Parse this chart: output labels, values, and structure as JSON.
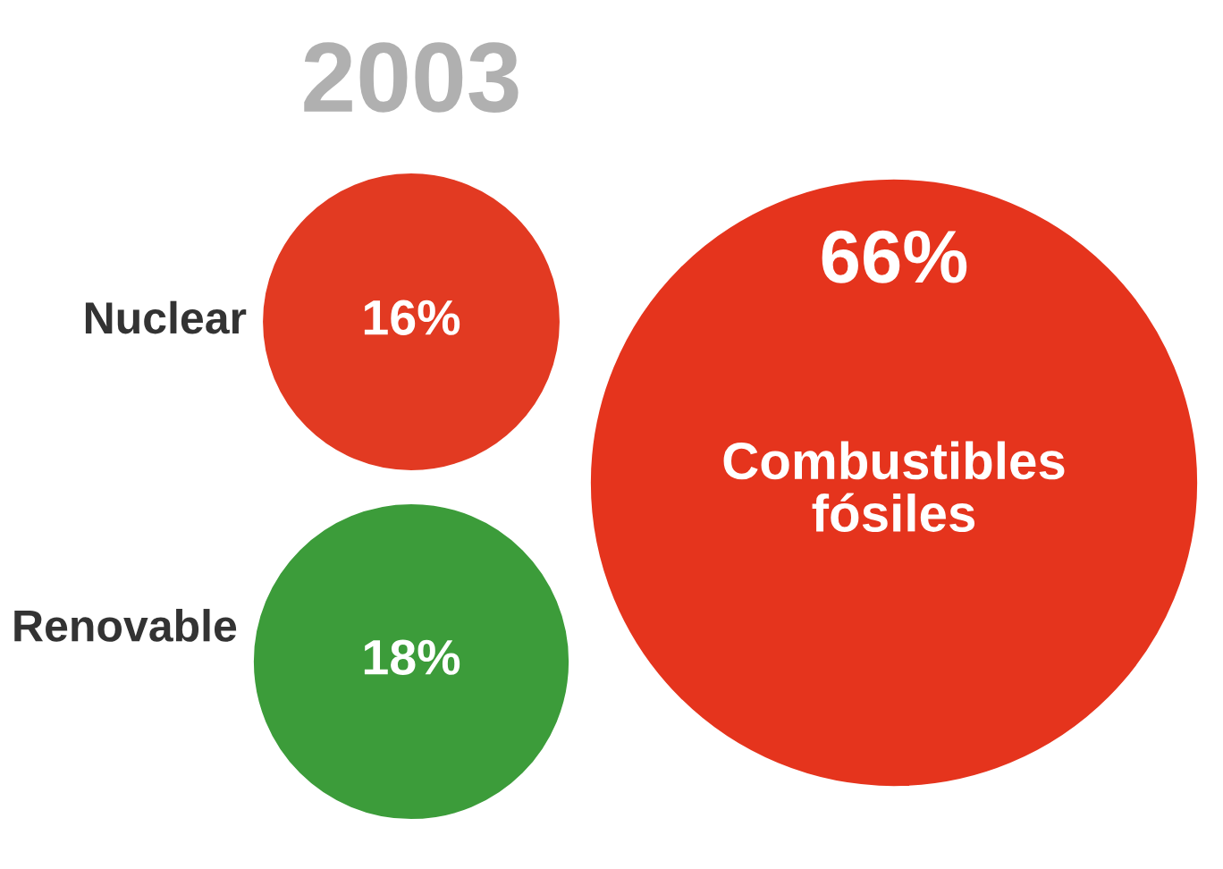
{
  "chart_data": {
    "type": "other",
    "title": "2003",
    "categories": [
      "Nuclear",
      "Renovable",
      "Combustibles fósiles"
    ],
    "values": [
      16,
      18,
      66
    ],
    "value_labels": [
      "16%",
      "18%",
      "66%"
    ],
    "colors": [
      "#e23a22",
      "#3c9c3a",
      "#e5341d"
    ]
  }
}
